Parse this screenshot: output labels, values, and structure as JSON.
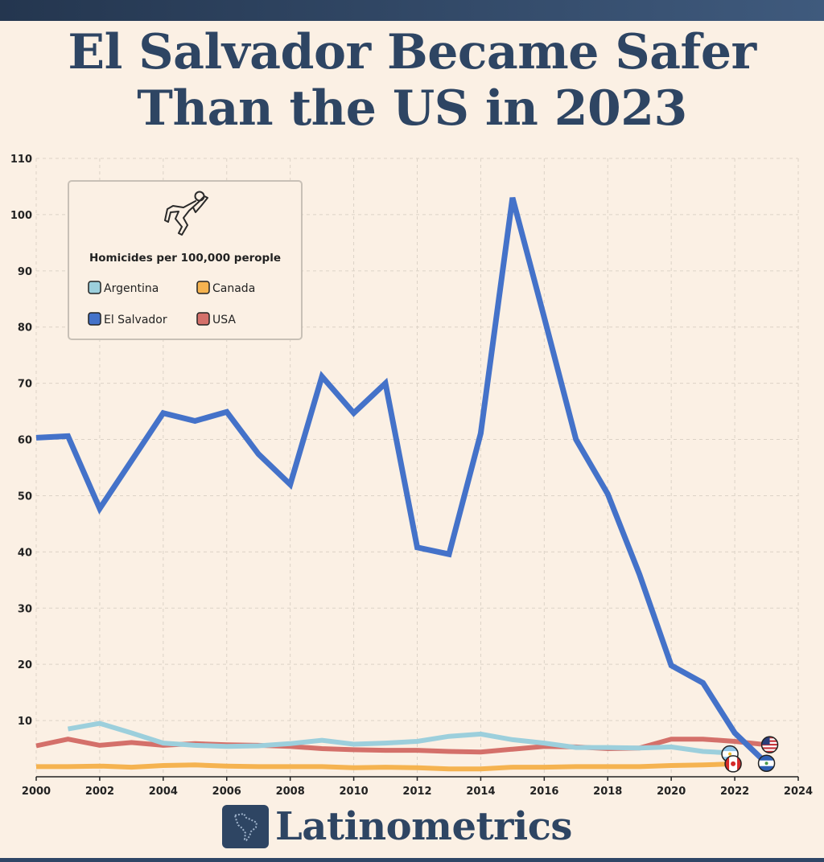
{
  "title": {
    "line1": "El Salvador Became Safer",
    "line2": "Than the US in 2023"
  },
  "brand": {
    "name": "Latinometrics"
  },
  "colors": {
    "background": "#fbf0e4",
    "title": "#2e4563",
    "grid": "#dcd2c6",
    "Argentina": "#9ccfdc",
    "Canada": "#f5b350",
    "El Salvador": "#4472c9",
    "USA": "#d4706a"
  },
  "icons": {
    "legend": "crime-scene-outline-icon",
    "brand": "latin-america-map-icon"
  },
  "chart_data": {
    "type": "line",
    "title": "Homicides per 100,000 perople",
    "xlabel": "",
    "ylabel": "",
    "xlim": [
      2000,
      2024
    ],
    "ylim": [
      0,
      110
    ],
    "xticks": [
      2000,
      2002,
      2004,
      2006,
      2008,
      2010,
      2012,
      2014,
      2016,
      2018,
      2020,
      2022,
      2024
    ],
    "yticks": [
      10,
      20,
      30,
      40,
      50,
      60,
      70,
      80,
      90,
      100,
      110
    ],
    "legend_position": "top-left",
    "series": [
      {
        "name": "Argentina",
        "x": [
          2001,
          2002,
          2003,
          2004,
          2005,
          2006,
          2007,
          2008,
          2009,
          2010,
          2011,
          2012,
          2013,
          2014,
          2015,
          2016,
          2017,
          2018,
          2019,
          2020,
          2021,
          2022
        ],
        "values": [
          8.5,
          9.5,
          7.8,
          6.0,
          5.6,
          5.4,
          5.5,
          5.9,
          6.5,
          5.8,
          6.0,
          6.3,
          7.2,
          7.6,
          6.6,
          6.0,
          5.2,
          5.2,
          5.1,
          5.3,
          4.5,
          4.2
        ]
      },
      {
        "name": "Canada",
        "x": [
          2000,
          2001,
          2002,
          2003,
          2004,
          2005,
          2006,
          2007,
          2008,
          2009,
          2010,
          2011,
          2012,
          2013,
          2014,
          2015,
          2016,
          2017,
          2018,
          2019,
          2020,
          2021,
          2022
        ],
        "values": [
          1.8,
          1.8,
          1.9,
          1.7,
          2.0,
          2.1,
          1.9,
          1.8,
          1.8,
          1.8,
          1.6,
          1.7,
          1.6,
          1.4,
          1.4,
          1.7,
          1.7,
          1.8,
          1.8,
          1.8,
          2.0,
          2.1,
          2.3
        ]
      },
      {
        "name": "El Salvador",
        "x": [
          2000,
          2001,
          2002,
          2003,
          2004,
          2005,
          2006,
          2007,
          2008,
          2009,
          2010,
          2011,
          2012,
          2013,
          2014,
          2015,
          2016,
          2017,
          2018,
          2019,
          2020,
          2021,
          2022,
          2023
        ],
        "values": [
          60.3,
          60.6,
          47.7,
          56.2,
          64.7,
          63.3,
          64.9,
          57.4,
          52.0,
          71.2,
          64.7,
          70.0,
          40.8,
          39.6,
          61.1,
          103.0,
          81.7,
          60.0,
          50.3,
          36.0,
          19.8,
          16.7,
          7.8,
          2.4
        ]
      },
      {
        "name": "USA",
        "x": [
          2000,
          2001,
          2002,
          2003,
          2004,
          2005,
          2006,
          2007,
          2008,
          2009,
          2010,
          2011,
          2012,
          2013,
          2014,
          2015,
          2016,
          2017,
          2018,
          2019,
          2020,
          2021,
          2022,
          2023
        ],
        "values": [
          5.5,
          6.7,
          5.6,
          6.1,
          5.6,
          5.9,
          5.7,
          5.6,
          5.4,
          5.0,
          4.8,
          4.7,
          4.7,
          4.5,
          4.4,
          4.9,
          5.4,
          5.3,
          5.0,
          5.1,
          6.7,
          6.7,
          6.3,
          5.7
        ]
      }
    ]
  }
}
